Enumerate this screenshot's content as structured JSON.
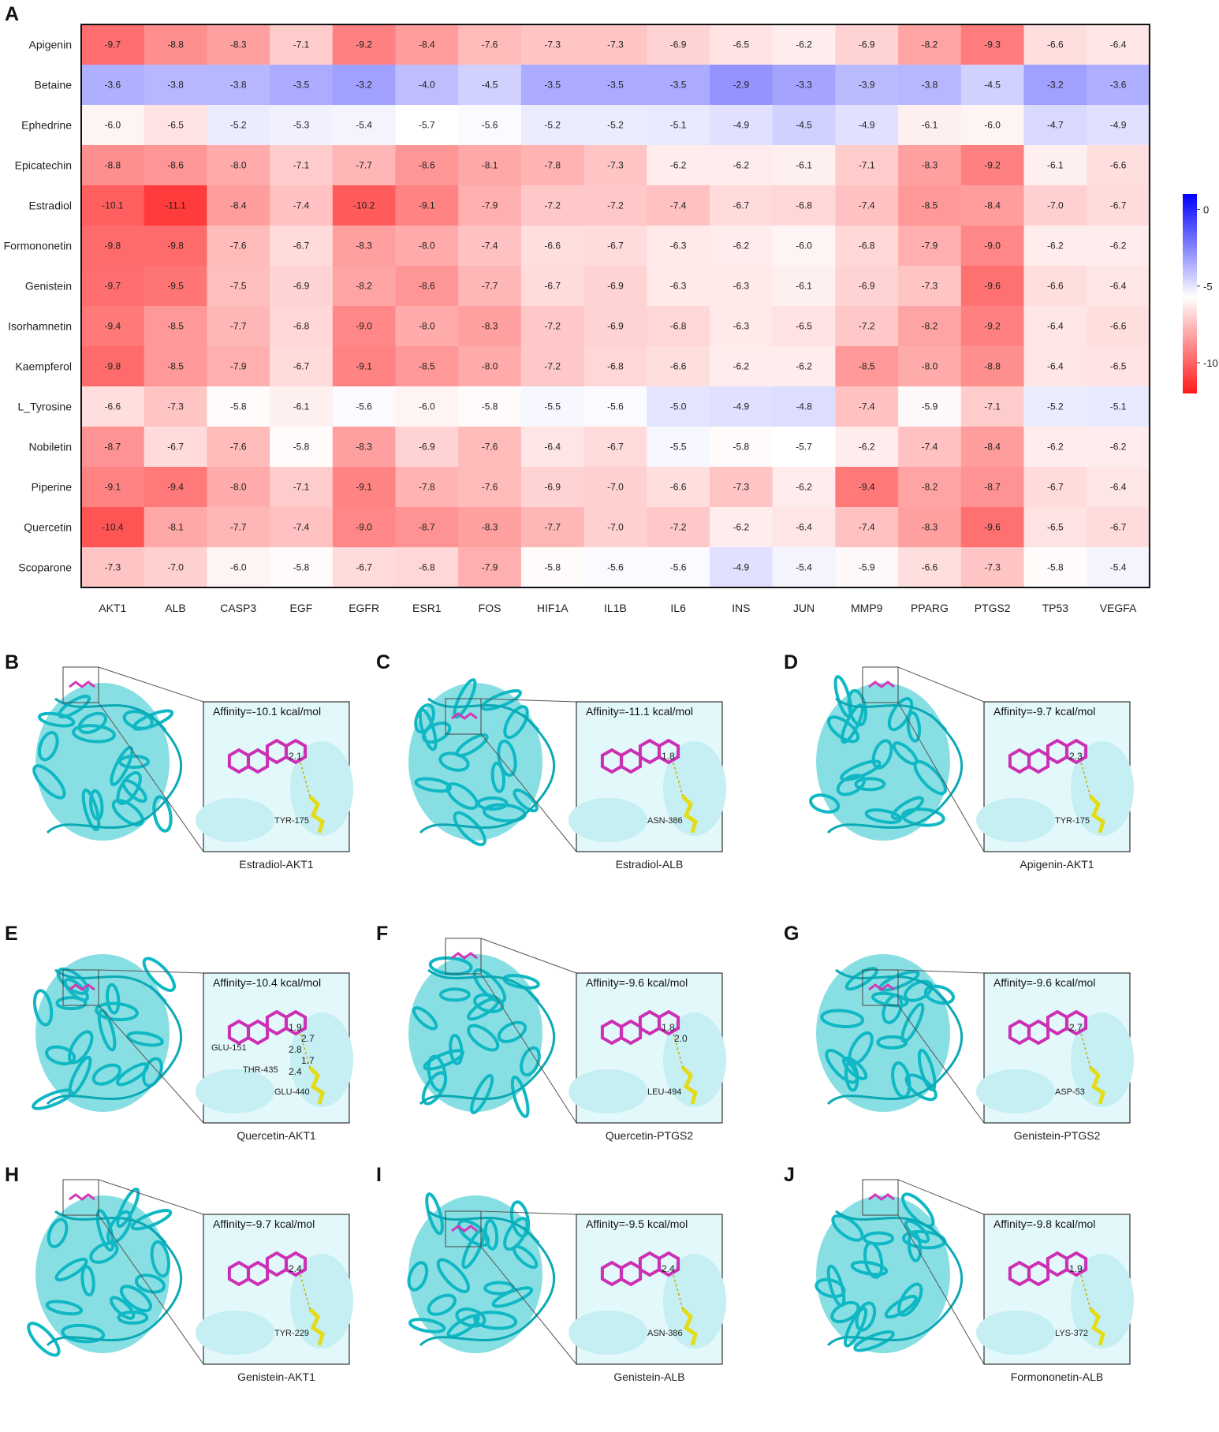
{
  "panel_a_label": "A",
  "chart_data": {
    "type": "heatmap",
    "title": "",
    "rows": [
      "Apigenin",
      "Betaine",
      "Ephedrine",
      "Epicatechin",
      "Estradiol",
      "Formononetin",
      "Genistein",
      "Isorhamnetin",
      "Kaempferol",
      "L_Tyrosine",
      "Nobiletin",
      "Piperine",
      "Quercetin",
      "Scoparone"
    ],
    "columns": [
      "AKT1",
      "ALB",
      "CASP3",
      "EGF",
      "EGFR",
      "ESR1",
      "FOS",
      "HIF1A",
      "IL1B",
      "IL6",
      "INS",
      "JUN",
      "MMP9",
      "PPARG",
      "PTGS2",
      "TP53",
      "VEGFA"
    ],
    "values": [
      [
        -9.7,
        -8.8,
        -8.3,
        -7.1,
        -9.2,
        -8.4,
        -7.6,
        -7.3,
        -7.3,
        -6.9,
        -6.5,
        -6.2,
        -6.9,
        -8.2,
        -9.3,
        -6.6,
        -6.4
      ],
      [
        -3.6,
        -3.8,
        -3.8,
        -3.5,
        -3.2,
        -4.0,
        -4.5,
        -3.5,
        -3.5,
        -3.5,
        -2.9,
        -3.3,
        -3.9,
        -3.8,
        -4.5,
        -3.2,
        -3.6
      ],
      [
        -6.0,
        -6.5,
        -5.2,
        -5.3,
        -5.4,
        -5.7,
        -5.6,
        -5.2,
        -5.2,
        -5.1,
        -4.9,
        -4.5,
        -4.9,
        -6.1,
        -6.0,
        -4.7,
        -4.9
      ],
      [
        -8.8,
        -8.6,
        -8.0,
        -7.1,
        -7.7,
        -8.6,
        -8.1,
        -7.8,
        -7.3,
        -6.2,
        -6.2,
        -6.1,
        -7.1,
        -8.3,
        -9.2,
        -6.1,
        -6.6
      ],
      [
        -10.1,
        -11.1,
        -8.4,
        -7.4,
        -10.2,
        -9.1,
        -7.9,
        -7.2,
        -7.2,
        -7.4,
        -6.7,
        -6.8,
        -7.4,
        -8.5,
        -8.4,
        -7.0,
        -6.7
      ],
      [
        -9.8,
        -9.8,
        -7.6,
        -6.7,
        -8.3,
        -8.0,
        -7.4,
        -6.6,
        -6.7,
        -6.3,
        -6.2,
        -6.0,
        -6.8,
        -7.9,
        -9.0,
        -6.2,
        -6.2
      ],
      [
        -9.7,
        -9.5,
        -7.5,
        -6.9,
        -8.2,
        -8.6,
        -7.7,
        -6.7,
        -6.9,
        -6.3,
        -6.3,
        -6.1,
        -6.9,
        -7.3,
        -9.6,
        -6.6,
        -6.4
      ],
      [
        -9.4,
        -8.5,
        -7.7,
        -6.8,
        -9.0,
        -8.0,
        -8.3,
        -7.2,
        -6.9,
        -6.8,
        -6.3,
        -6.5,
        -7.2,
        -8.2,
        -9.2,
        -6.4,
        -6.6
      ],
      [
        -9.8,
        -8.5,
        -7.9,
        -6.7,
        -9.1,
        -8.5,
        -8.0,
        -7.2,
        -6.8,
        -6.6,
        -6.2,
        -6.2,
        -8.5,
        -8.0,
        -8.8,
        -6.4,
        -6.5
      ],
      [
        -6.6,
        -7.3,
        -5.8,
        -6.1,
        -5.6,
        -6.0,
        -5.8,
        -5.5,
        -5.6,
        -5.0,
        -4.9,
        -4.8,
        -7.4,
        -5.9,
        -7.1,
        -5.2,
        -5.1
      ],
      [
        -8.7,
        -6.7,
        -7.6,
        -5.8,
        -8.3,
        -6.9,
        -7.6,
        -6.4,
        -6.7,
        -5.5,
        -5.8,
        -5.7,
        -6.2,
        -7.4,
        -8.4,
        -6.2,
        -6.2
      ],
      [
        -9.1,
        -9.4,
        -8.0,
        -7.1,
        -9.1,
        -7.8,
        -7.6,
        -6.9,
        -7.0,
        -6.6,
        -7.3,
        -6.2,
        -9.4,
        -8.2,
        -8.7,
        -6.7,
        -6.4
      ],
      [
        -10.4,
        -8.1,
        -7.7,
        -7.4,
        -9.0,
        -8.7,
        -8.3,
        -7.7,
        -7.0,
        -7.2,
        -6.2,
        -6.4,
        -7.4,
        -8.3,
        -9.6,
        -6.5,
        -6.7
      ],
      [
        -7.3,
        -7.0,
        -6.0,
        -5.8,
        -6.7,
        -6.8,
        -7.9,
        -5.8,
        -5.6,
        -5.6,
        -4.9,
        -5.4,
        -5.9,
        -6.6,
        -7.3,
        -5.8,
        -5.4
      ]
    ],
    "colorbar": {
      "ticks": [
        "0",
        "-5",
        "-10"
      ],
      "tick_values": [
        0,
        -5,
        -10
      ],
      "range": [
        -12,
        1
      ],
      "low_color": "#ff1a1a",
      "mid_color": "#ffffff",
      "high_color": "#0000ff",
      "mid_value": -5.7
    }
  },
  "docking_panels": [
    {
      "label": "B",
      "affinity": "Affinity=-10.1 kcal/mol",
      "residues": [
        "TYR-175"
      ],
      "distances": [
        "2.1"
      ],
      "caption": "Estradiol-AKT1"
    },
    {
      "label": "C",
      "affinity": "Affinity=-11.1 kcal/mol",
      "residues": [
        "ASN-386"
      ],
      "distances": [
        "1.8"
      ],
      "caption": "Estradiol-ALB"
    },
    {
      "label": "D",
      "affinity": "Affinity=-9.7 kcal/mol",
      "residues": [
        "TYR-175"
      ],
      "distances": [
        "2.3"
      ],
      "caption": "Apigenin-AKT1"
    },
    {
      "label": "E",
      "affinity": "Affinity=-10.4 kcal/mol",
      "residues": [
        "GLU-440",
        "THR-435",
        "GLU-151"
      ],
      "distances": [
        "1.9",
        "2.7",
        "2.8",
        "1.7",
        "2.4"
      ],
      "caption": "Quercetin-AKT1"
    },
    {
      "label": "F",
      "affinity": "Affinity=-9.6 kcal/mol",
      "residues": [
        "LEU-494"
      ],
      "distances": [
        "1.8",
        "2.0"
      ],
      "caption": "Quercetin-PTGS2"
    },
    {
      "label": "G",
      "affinity": "Affinity=-9.6 kcal/mol",
      "residues": [
        "ASP-53"
      ],
      "distances": [
        "2.7"
      ],
      "caption": "Genistein-PTGS2"
    },
    {
      "label": "H",
      "affinity": "Affinity=-9.7 kcal/mol",
      "residues": [
        "TYR-229"
      ],
      "distances": [
        "2.4"
      ],
      "caption": "Genistein-AKT1"
    },
    {
      "label": "I",
      "affinity": "Affinity=-9.5 kcal/mol",
      "residues": [
        "ASN-386"
      ],
      "distances": [
        "2.4"
      ],
      "caption": "Genistein-ALB"
    },
    {
      "label": "J",
      "affinity": "Affinity=-9.8 kcal/mol",
      "residues": [
        "LYS-372"
      ],
      "distances": [
        "1.9"
      ],
      "caption": "Formononetin-ALB"
    }
  ]
}
